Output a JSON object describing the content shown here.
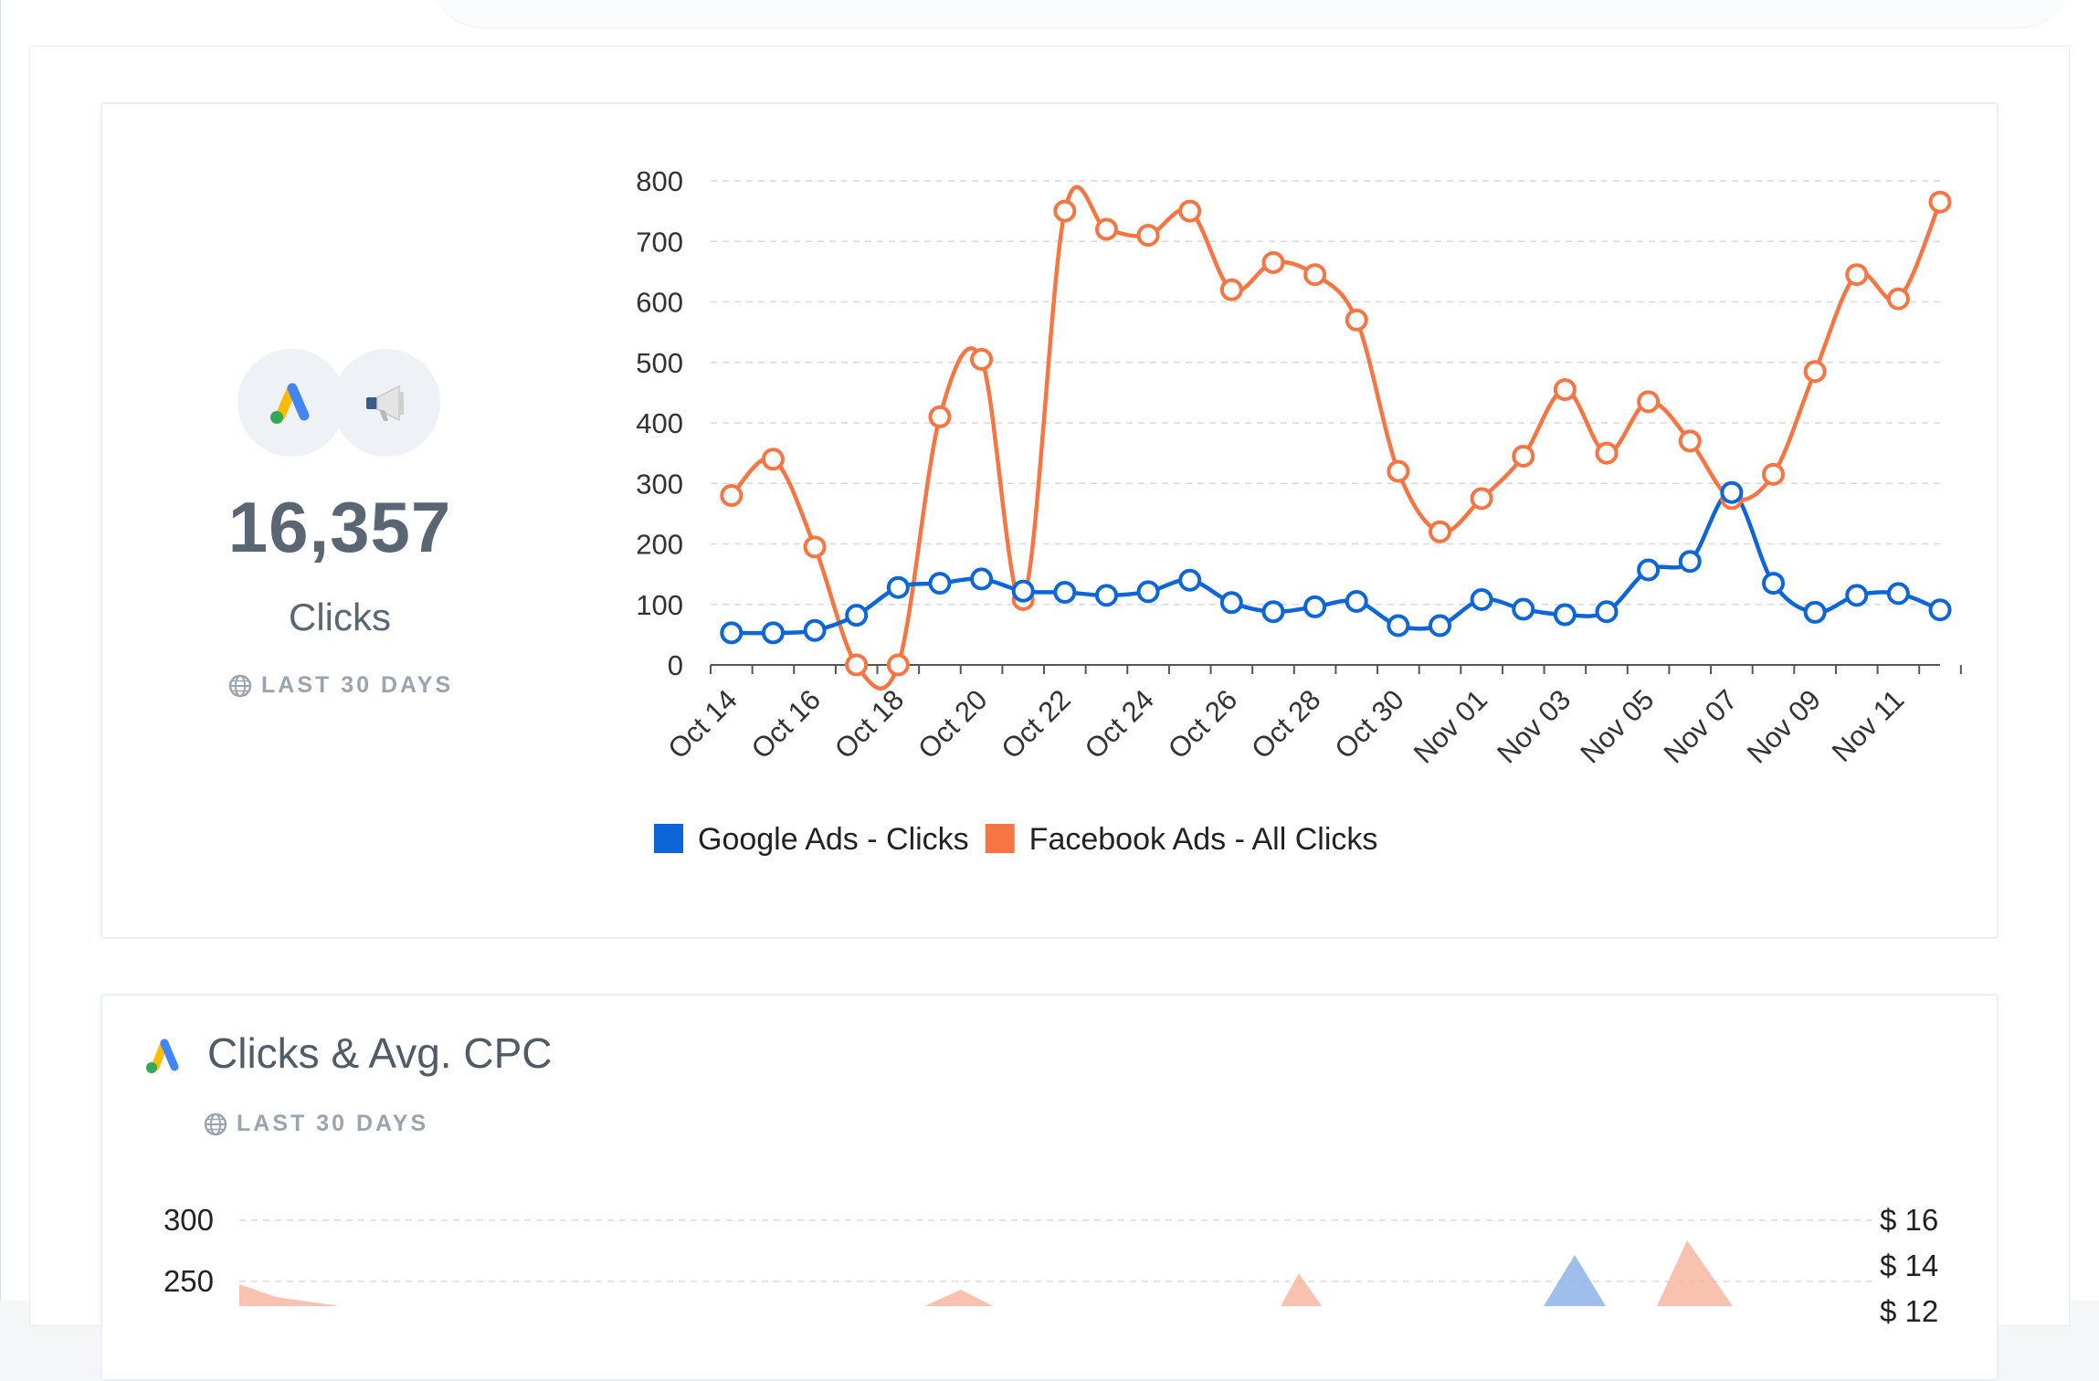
{
  "kpi": {
    "value": "16,357",
    "label": "Clicks",
    "period": "LAST 30 DAYS",
    "icons": [
      "google-ads-icon",
      "facebook-megaphone-icon"
    ]
  },
  "chart_data": [
    {
      "type": "line",
      "categories": [
        "Oct 14",
        "Oct 15",
        "Oct 16",
        "Oct 17",
        "Oct 18",
        "Oct 19",
        "Oct 20",
        "Oct 21",
        "Oct 22",
        "Oct 23",
        "Oct 24",
        "Oct 25",
        "Oct 26",
        "Oct 27",
        "Oct 28",
        "Oct 29",
        "Oct 30",
        "Oct 31",
        "Nov 01",
        "Nov 02",
        "Nov 03",
        "Nov 04",
        "Nov 05",
        "Nov 06",
        "Nov 07",
        "Nov 08",
        "Nov 09",
        "Nov 10",
        "Nov 11",
        "Nov 12"
      ],
      "x_tick_labels": [
        "Oct 14",
        "Oct 16",
        "Oct 18",
        "Oct 20",
        "Oct 22",
        "Oct 24",
        "Oct 26",
        "Oct 28",
        "Oct 30",
        "Nov 01",
        "Nov 03",
        "Nov 05",
        "Nov 07",
        "Nov 09",
        "Nov 11"
      ],
      "y_ticks": [
        0,
        100,
        200,
        300,
        400,
        500,
        600,
        700,
        800
      ],
      "ylim": [
        0,
        800
      ],
      "grid": true,
      "legend": "bottom-left",
      "series": [
        {
          "name": "Google Ads - Clicks",
          "color": "#0c66d8",
          "values": [
            53,
            53,
            57,
            82,
            128,
            135,
            142,
            122,
            120,
            115,
            121,
            140,
            103,
            88,
            96,
            105,
            65,
            65,
            108,
            92,
            83,
            88,
            157,
            171,
            285,
            135,
            87,
            115,
            118,
            91
          ]
        },
        {
          "name": "Facebook Ads - All Clicks",
          "color": "#f77542",
          "values": [
            280,
            340,
            195,
            0,
            0,
            410,
            505,
            108,
            750,
            720,
            710,
            750,
            620,
            665,
            645,
            570,
            320,
            220,
            275,
            345,
            455,
            350,
            435,
            370,
            275,
            315,
            485,
            645,
            605,
            765
          ]
        }
      ]
    },
    {
      "type": "area",
      "title": "Clicks & Avg. CPC",
      "period": "LAST 30 DAYS",
      "left_axis_ticks": [
        300,
        250
      ],
      "right_axis_ticks": [
        "$ 16",
        "$ 14",
        "$ 12"
      ],
      "series_colors": [
        "#f8b19b",
        "#8fb3e8"
      ]
    }
  ]
}
